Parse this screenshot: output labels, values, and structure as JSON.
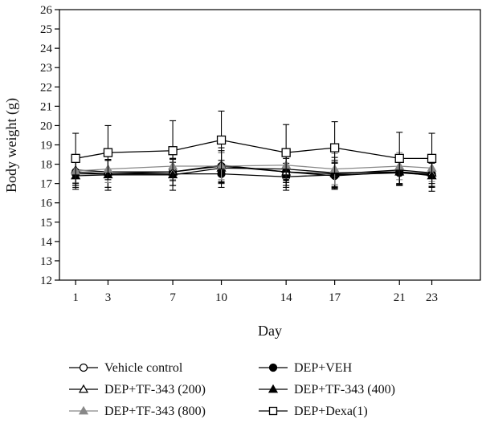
{
  "chart_data": {
    "type": "line",
    "xlabel": "Day",
    "ylabel": "Body weight (g)",
    "x": [
      1,
      3,
      7,
      10,
      14,
      17,
      21,
      23
    ],
    "xlim": [
      0,
      26
    ],
    "ylim": [
      12,
      26
    ],
    "x_ticks": [
      1,
      3,
      7,
      10,
      14,
      17,
      21,
      23
    ],
    "y_ticks": [
      12,
      13,
      14,
      15,
      16,
      17,
      18,
      19,
      20,
      21,
      22,
      23,
      24,
      25,
      26
    ],
    "grid": false,
    "legend_position": "bottom",
    "series": [
      {
        "name": "Vehicle control",
        "marker": "circle-open",
        "color": "#000000",
        "values": [
          17.6,
          17.5,
          17.6,
          17.9,
          17.6,
          17.4,
          17.6,
          17.5
        ],
        "errors": [
          0.7,
          0.7,
          0.7,
          0.8,
          0.7,
          0.7,
          0.7,
          0.7
        ]
      },
      {
        "name": "DEP+VEH",
        "marker": "circle-filled",
        "color": "#000000",
        "values": [
          17.5,
          17.5,
          17.5,
          17.5,
          17.35,
          17.45,
          17.55,
          17.45
        ],
        "errors": [
          0.7,
          0.7,
          0.6,
          0.7,
          0.7,
          0.6,
          0.6,
          0.6
        ]
      },
      {
        "name": "DEP+TF-343 (200)",
        "marker": "triangle-open",
        "color": "#000000",
        "values": [
          17.7,
          17.6,
          17.6,
          17.95,
          17.6,
          17.5,
          17.7,
          17.55
        ],
        "errors": [
          0.8,
          0.8,
          0.7,
          0.9,
          0.8,
          0.7,
          0.7,
          0.7
        ]
      },
      {
        "name": "DEP+TF-343 (400)",
        "marker": "triangle-filled",
        "color": "#000000",
        "values": [
          17.4,
          17.45,
          17.45,
          17.8,
          17.75,
          17.55,
          17.6,
          17.4
        ],
        "errors": [
          0.7,
          0.8,
          0.8,
          0.8,
          0.7,
          0.8,
          0.7,
          0.8
        ]
      },
      {
        "name": "DEP+TF-343 (800)",
        "marker": "triangle-filled",
        "color": "#888888",
        "values": [
          17.65,
          17.75,
          17.9,
          17.9,
          17.95,
          17.75,
          17.9,
          17.8
        ],
        "errors": [
          0.6,
          0.7,
          0.7,
          0.7,
          0.7,
          0.8,
          0.7,
          0.7
        ]
      },
      {
        "name": "DEP+Dexa(1)",
        "marker": "square-open",
        "color": "#000000",
        "values": [
          18.3,
          18.6,
          18.7,
          19.25,
          18.6,
          18.85,
          18.3,
          18.3
        ],
        "errors": [
          1.3,
          1.4,
          1.55,
          1.5,
          1.45,
          1.35,
          1.35,
          1.3
        ]
      }
    ]
  }
}
